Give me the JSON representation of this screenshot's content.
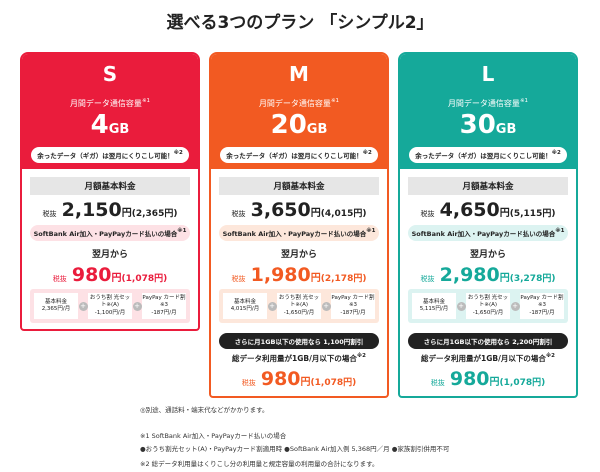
{
  "title": "選べる3つのプラン 「シンプル2」",
  "plans": [
    {
      "name": "S",
      "capacity_label": "月間データ通信容量",
      "capacity_note": "※1",
      "capacity_value": "4",
      "capacity_unit": "GB",
      "rollover": "余ったデータ（ギガ）は翌月にくりこし可能！",
      "rollover_note": "※2",
      "base_label": "月額基本料金",
      "tax_label": "税抜",
      "price": "2,150",
      "yen": "円",
      "price_incl": "(2,365円)",
      "condition": "SoftBank Air加入・PayPayカード払いの場合",
      "condition_note": "※1",
      "next_month": "翌月から",
      "discount_price": "980",
      "discount_incl": "(1,078円)",
      "breakdown": [
        {
          "label": "基本料金",
          "amount": "2,365円/月"
        },
        {
          "label": "おうち割 光セット※(A)",
          "amount": "-1,100円/月"
        },
        {
          "label": "PayPay カード割※3",
          "amount": "-187円/月"
        }
      ]
    },
    {
      "name": "M",
      "capacity_label": "月間データ通信容量",
      "capacity_note": "※1",
      "capacity_value": "20",
      "capacity_unit": "GB",
      "rollover": "余ったデータ（ギガ）は翌月にくりこし可能！",
      "rollover_note": "※2",
      "base_label": "月額基本料金",
      "tax_label": "税抜",
      "price": "3,650",
      "yen": "円",
      "price_incl": "(4,015円)",
      "condition": "SoftBank Air加入・PayPayカード払いの場合",
      "condition_note": "※1",
      "next_month": "翌月から",
      "discount_price": "1,980",
      "discount_incl": "(2,178円)",
      "breakdown": [
        {
          "label": "基本料金",
          "amount": "4,015円/月"
        },
        {
          "label": "おうち割 光セット※(A)",
          "amount": "-1,650円/月"
        },
        {
          "label": "PayPay カード割※3",
          "amount": "-187円/月"
        }
      ],
      "extra": {
        "banner": "さらに月1GB以下の使用なら 1,100円割引",
        "condition": "総データ利用量が1GB/月以下の場合",
        "condition_note": "※2",
        "tax_label": "税抜",
        "price": "980",
        "yen": "円",
        "price_incl": "(1,078円)"
      }
    },
    {
      "name": "L",
      "capacity_label": "月間データ通信容量",
      "capacity_note": "※1",
      "capacity_value": "30",
      "capacity_unit": "GB",
      "rollover": "余ったデータ（ギガ）は翌月にくりこし可能！",
      "rollover_note": "※2",
      "base_label": "月額基本料金",
      "tax_label": "税抜",
      "price": "4,650",
      "yen": "円",
      "price_incl": "(5,115円)",
      "condition": "SoftBank Air加入・PayPayカード払いの場合",
      "condition_note": "※1",
      "next_month": "翌月から",
      "discount_price": "2,980",
      "discount_incl": "(3,278円)",
      "breakdown": [
        {
          "label": "基本料金",
          "amount": "5,115円/月"
        },
        {
          "label": "おうち割 光セット※(A)",
          "amount": "-1,650円/月"
        },
        {
          "label": "PayPay カード割※3",
          "amount": "-187円/月"
        }
      ],
      "extra": {
        "banner": "さらに月1GB以下の使用なら 2,200円割引",
        "condition": "総データ利用量が1GB/月以下の場合",
        "condition_note": "※2",
        "tax_label": "税抜",
        "price": "980",
        "yen": "円",
        "price_incl": "(1,078円)"
      }
    }
  ],
  "plus": "+",
  "footnotes": [
    "◎別途、通話料・端末代などがかかります。",
    "※1 SoftBank Air加入・PayPayカード払いの場合",
    "●おうち割光セット(A)・PayPayカード割適用時 ●SoftBank Air加入例 5,368円／月 ●家族割引併用不可",
    "※2 総データ利用量はくりこし分の利用量と規定容量の利用量の合計になります。"
  ]
}
